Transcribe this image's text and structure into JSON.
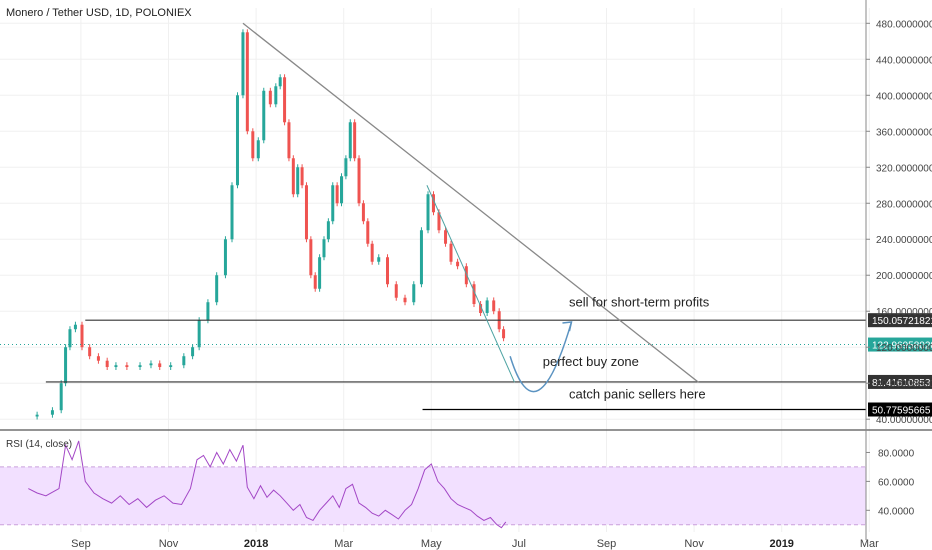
{
  "chart_data": {
    "type": "candlestick",
    "title": "Monero / Tether USD, 1D, POLONIEX",
    "x_axis": {
      "ticks": [
        {
          "label": "Sep",
          "t": 0.5
        },
        {
          "label": "Nov",
          "t": 2.5
        },
        {
          "label": "2018",
          "t": 4.5,
          "bold": true
        },
        {
          "label": "Mar",
          "t": 6.5
        },
        {
          "label": "May",
          "t": 8.5
        },
        {
          "label": "Jul",
          "t": 10.5
        },
        {
          "label": "Sep",
          "t": 12.5
        },
        {
          "label": "Nov",
          "t": 14.5
        },
        {
          "label": "2019",
          "t": 16.5,
          "bold": true
        },
        {
          "label": "Mar",
          "t": 18.5
        }
      ]
    },
    "y_axis": {
      "ylim": [
        28,
        497
      ],
      "ticks": [
        40,
        80,
        120,
        160,
        200,
        240,
        280,
        320,
        360,
        400,
        440,
        480
      ],
      "tick_format": 8
    },
    "price_points": [
      [
        -0.7,
        43
      ],
      [
        -0.3,
        45
      ],
      [
        0,
        50
      ],
      [
        0.1,
        80
      ],
      [
        0.2,
        120
      ],
      [
        0.3,
        140
      ],
      [
        0.45,
        145
      ],
      [
        0.6,
        120
      ],
      [
        0.8,
        110
      ],
      [
        1,
        105
      ],
      [
        1.2,
        98
      ],
      [
        1.4,
        100
      ],
      [
        1.7,
        98
      ],
      [
        2,
        100
      ],
      [
        2.2,
        102
      ],
      [
        2.4,
        98
      ],
      [
        2.7,
        100
      ],
      [
        3,
        110
      ],
      [
        3.1,
        120
      ],
      [
        3.3,
        150
      ],
      [
        3.5,
        170
      ],
      [
        3.7,
        200
      ],
      [
        3.9,
        240
      ],
      [
        4.0,
        300
      ],
      [
        4.15,
        400
      ],
      [
        4.25,
        470
      ],
      [
        4.35,
        360
      ],
      [
        4.5,
        330
      ],
      [
        4.6,
        350
      ],
      [
        4.75,
        405
      ],
      [
        4.9,
        390
      ],
      [
        5.0,
        410
      ],
      [
        5.1,
        420
      ],
      [
        5.2,
        370
      ],
      [
        5.3,
        330
      ],
      [
        5.4,
        290
      ],
      [
        5.5,
        320
      ],
      [
        5.6,
        300
      ],
      [
        5.7,
        240
      ],
      [
        5.8,
        200
      ],
      [
        5.9,
        185
      ],
      [
        6.0,
        220
      ],
      [
        6.1,
        240
      ],
      [
        6.2,
        260
      ],
      [
        6.3,
        300
      ],
      [
        6.4,
        280
      ],
      [
        6.5,
        310
      ],
      [
        6.6,
        330
      ],
      [
        6.7,
        370
      ],
      [
        6.8,
        330
      ],
      [
        6.9,
        280
      ],
      [
        7.0,
        260
      ],
      [
        7.1,
        235
      ],
      [
        7.2,
        215
      ],
      [
        7.4,
        220
      ],
      [
        7.6,
        190
      ],
      [
        7.8,
        175
      ],
      [
        8.0,
        170
      ],
      [
        8.2,
        190
      ],
      [
        8.35,
        250
      ],
      [
        8.5,
        290
      ],
      [
        8.6,
        270
      ],
      [
        8.75,
        250
      ],
      [
        8.9,
        235
      ],
      [
        9.0,
        215
      ],
      [
        9.2,
        210
      ],
      [
        9.4,
        190
      ],
      [
        9.55,
        168
      ],
      [
        9.7,
        158
      ],
      [
        9.85,
        172
      ],
      [
        10.0,
        160
      ],
      [
        10.1,
        140
      ],
      [
        10.2,
        130
      ]
    ],
    "rsi": {
      "label": "RSI (14, close)",
      "ylim": [
        25,
        90
      ],
      "ticks": [
        40,
        60,
        80
      ],
      "band": [
        30,
        70
      ],
      "points": [
        [
          -0.7,
          55
        ],
        [
          -0.5,
          52
        ],
        [
          -0.3,
          50
        ],
        [
          0,
          55
        ],
        [
          0.15,
          85
        ],
        [
          0.3,
          75
        ],
        [
          0.45,
          88
        ],
        [
          0.6,
          60
        ],
        [
          0.8,
          52
        ],
        [
          1.0,
          48
        ],
        [
          1.2,
          45
        ],
        [
          1.4,
          50
        ],
        [
          1.6,
          44
        ],
        [
          1.8,
          48
        ],
        [
          2.0,
          42
        ],
        [
          2.2,
          47
        ],
        [
          2.4,
          50
        ],
        [
          2.6,
          45
        ],
        [
          2.8,
          44
        ],
        [
          3.0,
          55
        ],
        [
          3.15,
          75
        ],
        [
          3.3,
          78
        ],
        [
          3.45,
          70
        ],
        [
          3.6,
          80
        ],
        [
          3.75,
          72
        ],
        [
          3.9,
          82
        ],
        [
          4.05,
          74
        ],
        [
          4.2,
          85
        ],
        [
          4.3,
          56
        ],
        [
          4.45,
          48
        ],
        [
          4.6,
          57
        ],
        [
          4.75,
          49
        ],
        [
          4.9,
          54
        ],
        [
          5.05,
          50
        ],
        [
          5.2,
          45
        ],
        [
          5.35,
          40
        ],
        [
          5.5,
          44
        ],
        [
          5.65,
          35
        ],
        [
          5.8,
          33
        ],
        [
          5.95,
          40
        ],
        [
          6.1,
          45
        ],
        [
          6.25,
          50
        ],
        [
          6.4,
          42
        ],
        [
          6.55,
          55
        ],
        [
          6.7,
          58
        ],
        [
          6.85,
          45
        ],
        [
          7.0,
          42
        ],
        [
          7.15,
          38
        ],
        [
          7.3,
          36
        ],
        [
          7.45,
          40
        ],
        [
          7.6,
          37
        ],
        [
          7.75,
          34
        ],
        [
          7.9,
          40
        ],
        [
          8.05,
          44
        ],
        [
          8.2,
          55
        ],
        [
          8.35,
          68
        ],
        [
          8.5,
          72
        ],
        [
          8.65,
          60
        ],
        [
          8.8,
          55
        ],
        [
          8.95,
          48
        ],
        [
          9.1,
          44
        ],
        [
          9.25,
          42
        ],
        [
          9.4,
          40
        ],
        [
          9.55,
          36
        ],
        [
          9.7,
          33
        ],
        [
          9.85,
          35
        ],
        [
          10.0,
          30
        ],
        [
          10.1,
          28
        ],
        [
          10.2,
          32
        ]
      ]
    },
    "annotations": [
      {
        "text": "sell for short-term profits",
        "price": 165,
        "t": 13.7
      },
      {
        "text": "perfect buy zone",
        "price": 99,
        "t": 13.1
      },
      {
        "text": "catch panic sellers here",
        "price": 63,
        "t": 13.7
      }
    ],
    "levels": [
      {
        "price": 150.05721821,
        "label": "150.05721821",
        "color": "#333333",
        "t_start": 0.6
      },
      {
        "price": 81.41610853,
        "label": "81.41610853",
        "color": "#333333",
        "t_start": -0.3
      },
      {
        "price": 50.77595665,
        "label": "50.77595665",
        "color": "#000000",
        "t_start": 8.3
      }
    ],
    "current_price": {
      "price": 122.9695802,
      "label": "122.96958020",
      "color": "#26a69a"
    },
    "trendlines": [
      {
        "from": [
          4.2,
          480
        ],
        "to": [
          14.6,
          81
        ],
        "color": "#888888",
        "width": 1.3
      },
      {
        "from": [
          8.4,
          300
        ],
        "to": [
          10.4,
          81
        ],
        "color": "#4ea3a3",
        "width": 1
      }
    ],
    "projection_arrow": {
      "from": [
        10.3,
        110
      ],
      "via": [
        10.9,
        60
      ],
      "to": [
        11.7,
        148
      ],
      "color": "#5b93c1"
    }
  },
  "colors": {
    "up": "#26a69a",
    "down": "#ef5350",
    "rsi_line": "#a347c6",
    "rsi_band": "#f2e0ff"
  }
}
